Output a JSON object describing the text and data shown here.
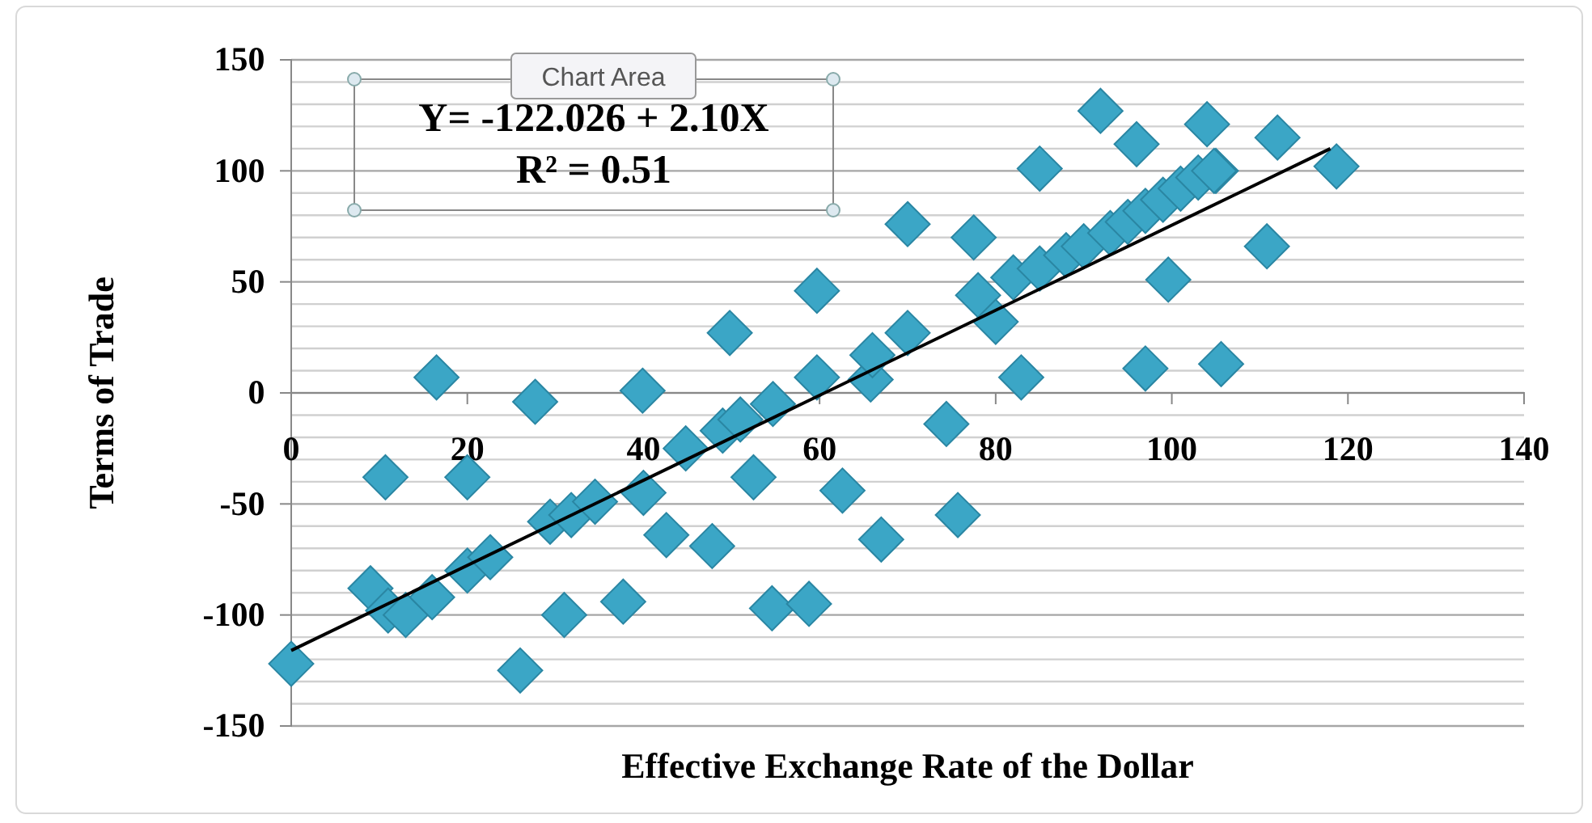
{
  "chart_data": {
    "type": "scatter",
    "xlabel": "Effective Exchange Rate of the Dollar",
    "ylabel": "Terms of Trade",
    "annotations": [
      "Y= -122.026 + 2.10X",
      "R² = 0.51",
      "Chart Area"
    ],
    "xlim": [
      0,
      140
    ],
    "xticks": [
      0,
      20,
      40,
      60,
      80,
      100,
      120,
      140
    ],
    "ylim": [
      -150,
      150
    ],
    "yticks": [
      -150,
      {
        "value": -140,
        "label": null
      },
      {
        "value": -130,
        "label": null
      },
      {
        "value": -120,
        "label": null
      },
      {
        "value": -110,
        "label": null
      },
      -100,
      {
        "value": -90,
        "label": null
      },
      {
        "value": -80,
        "label": null
      },
      {
        "value": -70,
        "label": null
      },
      {
        "value": -60,
        "label": null
      },
      -50,
      {
        "value": -40,
        "label": null
      },
      {
        "value": -30,
        "label": null
      },
      {
        "value": -20,
        "label": null
      },
      {
        "value": -10,
        "label": null
      },
      0,
      {
        "value": 10,
        "label": null
      },
      {
        "value": 20,
        "label": null
      },
      {
        "value": 30,
        "label": null
      },
      {
        "value": 40,
        "label": null
      },
      50,
      {
        "value": 60,
        "label": null
      },
      {
        "value": 70,
        "label": null
      },
      {
        "value": 80,
        "label": null
      },
      {
        "value": 90,
        "label": null
      },
      100,
      {
        "value": 110,
        "label": null
      },
      {
        "value": 120,
        "label": null
      },
      {
        "value": 130,
        "label": null
      },
      {
        "value": 140,
        "label": null
      },
      150
    ],
    "grid": "y",
    "series": [
      {
        "color": "#3ba6c6",
        "marker": "diamond",
        "x": [
          0,
          9,
          11,
          13,
          16,
          10.7,
          16.5,
          20,
          20,
          22.6,
          26,
          27.7,
          29.4,
          31,
          31.8,
          34.5,
          37.7,
          39.9,
          40,
          42.6,
          44.8,
          47.8,
          49.8,
          49,
          51,
          52.5,
          54.6,
          54.7,
          58.8,
          59.7,
          59.7,
          62.6,
          67,
          65.8,
          66,
          70,
          70,
          74.4,
          75.7,
          77.5,
          78,
          80,
          82.9,
          82,
          85,
          88,
          90,
          93,
          95,
          97,
          99,
          101,
          103,
          105,
          85,
          91.9,
          96,
          97,
          99.6,
          104,
          105.6,
          104.8,
          112,
          110.8,
          118.7
        ],
        "values": [
          -122,
          -88,
          -98,
          -100,
          -92,
          -38,
          7,
          -38,
          -80,
          -74,
          -125,
          -4,
          -58,
          -100,
          -55,
          -49,
          -94,
          1,
          -45,
          -64,
          -25,
          -69,
          27,
          -17,
          -12,
          -38,
          -97,
          -5,
          -95,
          46,
          7,
          -44,
          -66,
          6,
          17,
          27,
          76,
          -14,
          -55,
          70,
          44,
          32,
          7,
          52,
          56,
          62,
          66,
          72,
          77,
          82,
          87,
          92,
          97,
          100,
          101,
          127,
          112,
          11,
          51,
          121,
          13,
          100,
          115,
          66,
          102
        ]
      },
      {
        "type": "line",
        "color": "#000000",
        "x": [
          0,
          118
        ],
        "values": [
          -116,
          110
        ],
        "marker": "none"
      }
    ]
  }
}
